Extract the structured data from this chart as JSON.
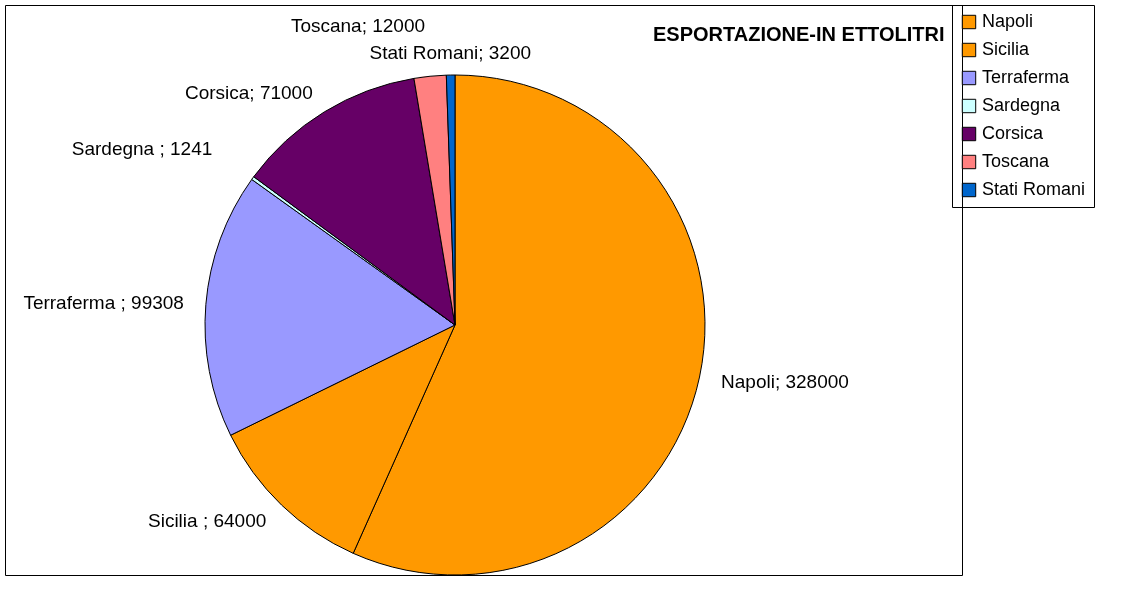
{
  "chart_data": {
    "type": "pie",
    "title": "ESPORTAZIONE-IN ETTOLITRI",
    "categories": [
      "Napoli",
      "Sicilia",
      "Terraferma",
      "Sardegna",
      "Corsica",
      "Toscana",
      "Stati Romani"
    ],
    "values": [
      328000,
      64000,
      99308,
      1241,
      71000,
      12000,
      3200
    ],
    "colors": [
      "#ff9900",
      "#ff9900",
      "#9999ff",
      "#ccffff",
      "#660066",
      "#ff8080",
      "#0066cc"
    ],
    "value_labels": [
      "Napoli; 328000",
      "Sicilia ; 64000",
      "Terraferma ; 99308",
      "Sardegna ; 1241",
      "Corsica; 71000",
      "Toscana; 12000",
      "Stati Romani; 3200"
    ],
    "legend": "right"
  }
}
